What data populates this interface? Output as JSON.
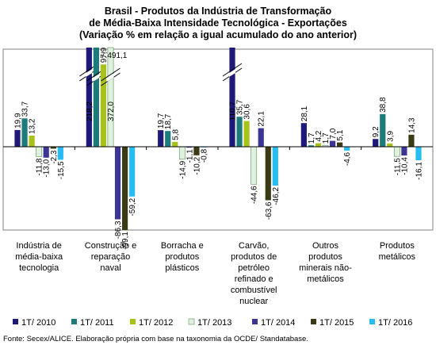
{
  "chart_data": {
    "type": "bar",
    "title_lines": [
      "Brasil - Produtos da Indústria de Transformação",
      "de Média-Baixa Intensidade Tecnológica - Exportações",
      "(Variação % em relação a igual acumulado do ano anterior)"
    ],
    "categories": [
      [
        "Indústria de",
        "média-baixa",
        "tecnologia"
      ],
      [
        "Construção e",
        "reparação",
        "naval"
      ],
      [
        "Borracha e",
        "produtos",
        "plásticos"
      ],
      [
        "Carvão,",
        "produtos de",
        "petróleo",
        "refinado e",
        "combustível",
        "nuclear"
      ],
      [
        "Outros",
        "produtos",
        "minerais não-",
        "metálicos"
      ],
      [
        "Produtos",
        "metálicos"
      ]
    ],
    "series": [
      {
        "name": "1T/ 2010",
        "color": "#1f1a7a",
        "values": [
          19.9,
          218.2,
          19.7,
          110.7,
          28.1,
          9.2
        ],
        "labels": [
          "19,9",
          "218,2",
          "19,7",
          "110,7",
          "28,1",
          "9,2"
        ]
      },
      {
        "name": "1T/ 2011",
        "color": "#1e7b7b",
        "values": [
          33.7,
          7491.1,
          18.7,
          35.7,
          1.7,
          38.8
        ],
        "labels": [
          "33,7",
          "7.491,1",
          "18,7",
          "35,7",
          "1,7",
          "38,8"
        ]
      },
      {
        "name": "1T/ 2012",
        "color": "#a8c21a",
        "values": [
          13.2,
          97.9,
          5.8,
          30.6,
          4.2,
          3.9
        ],
        "labels": [
          "13,2",
          "97,9",
          "5,8",
          "30,6",
          "4,2",
          "3,9"
        ]
      },
      {
        "name": "1T/ 2013",
        "color": "#dff2dd",
        "values": [
          -11.8,
          372.0,
          -14.9,
          -44.6,
          1.7,
          -11.5
        ],
        "labels": [
          "-11,8",
          "372,0",
          "-14,9",
          "-44,6",
          "1,7",
          "-11,5"
        ]
      },
      {
        "name": "1T/ 2014",
        "color": "#3d3594",
        "values": [
          -13.0,
          -86.3,
          -1.1,
          22.1,
          7.0,
          -10.4
        ],
        "labels": [
          "-13,0",
          "-86,3",
          "-1,1",
          "22,1",
          "7,0",
          "-10,4"
        ]
      },
      {
        "name": "1T/ 2015",
        "color": "#3a3a14",
        "values": [
          -2.3,
          -99.1,
          -10.2,
          -63.6,
          5.1,
          14.3
        ],
        "labels": [
          "-2,3",
          "-99,1",
          "-10,2",
          "-63,6",
          "5,1",
          "14,3"
        ]
      },
      {
        "name": "1T/ 2016",
        "color": "#27bdf2",
        "values": [
          -15.5,
          -59.2,
          -0.8,
          -46.2,
          -4.6,
          -16.1
        ],
        "labels": [
          "-15,5",
          "-59,2",
          "-0,8",
          "-46,2",
          "-4,6",
          "-16,1"
        ]
      }
    ],
    "source": "Fonte: Secex/ALICE. Elaboração própria com base na taxonomia da OCDE/ Standatabase.",
    "grid": false,
    "legend_position": "bottom"
  }
}
